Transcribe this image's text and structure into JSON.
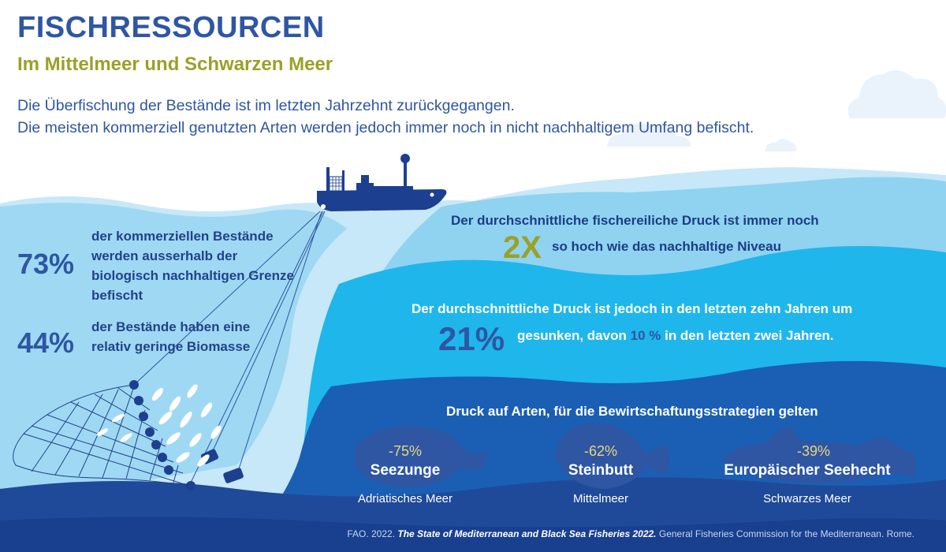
{
  "header": {
    "title": "FISCHRESSOURCEN",
    "subtitle": "Im Mittelmeer und Schwarzen Meer",
    "intro_line1": "Die Überfischung der Bestände ist im letzten Jahrzehnt zurückgegangen.",
    "intro_line2": "Die meisten kommerziell genutzten Arten werden jedoch immer noch in nicht nachhaltigem Umfang befischt."
  },
  "stats": {
    "stat1_value": "73%",
    "stat1_label": "der kommerziellen Bestände werden ausserhalb der biologisch nachhaltigen Grenze befischt",
    "stat2_value": "44%",
    "stat2_label": "der Bestände haben eine relativ geringe Biomasse"
  },
  "pressure": {
    "line1": "Der durchschnittliche fischereiliche Druck ist immer noch",
    "value": "2X",
    "line2": "so hoch wie das nachhaltige Niveau"
  },
  "decline": {
    "line1": "Der durchschnittliche Druck ist jedoch in den letzten zehn Jahren um",
    "value": "21%",
    "text_a": "gesunken, davon",
    "small_value": "10 %",
    "text_b": "in den letzten zwei Jahren."
  },
  "species": {
    "heading": "Druck auf Arten, für die Bewirtschaftungsstrategien gelten",
    "items": [
      {
        "pct": "-75%",
        "name": "Seezunge",
        "region": "Adriatisches Meer"
      },
      {
        "pct": "-62%",
        "name": "Steinbutt",
        "region": "Mittelmeer"
      },
      {
        "pct": "-39%",
        "name": "Europäischer Seehecht",
        "region": "Schwarzes Meer"
      }
    ]
  },
  "footer": {
    "prefix": "FAO. 2022.",
    "title": "The State of Mediterranean and Black Sea Fisheries 2022.",
    "suffix": "General Fisheries Commission for the Mediterranean. Rome."
  },
  "colors": {
    "title_blue": "#2e56a3",
    "olive": "#9aa126",
    "light_sea": "#bfe3f5",
    "sea_mid": "#1fb6ec",
    "sea_deep": "#1a5fb4",
    "sea_darkest": "#193f8f"
  }
}
